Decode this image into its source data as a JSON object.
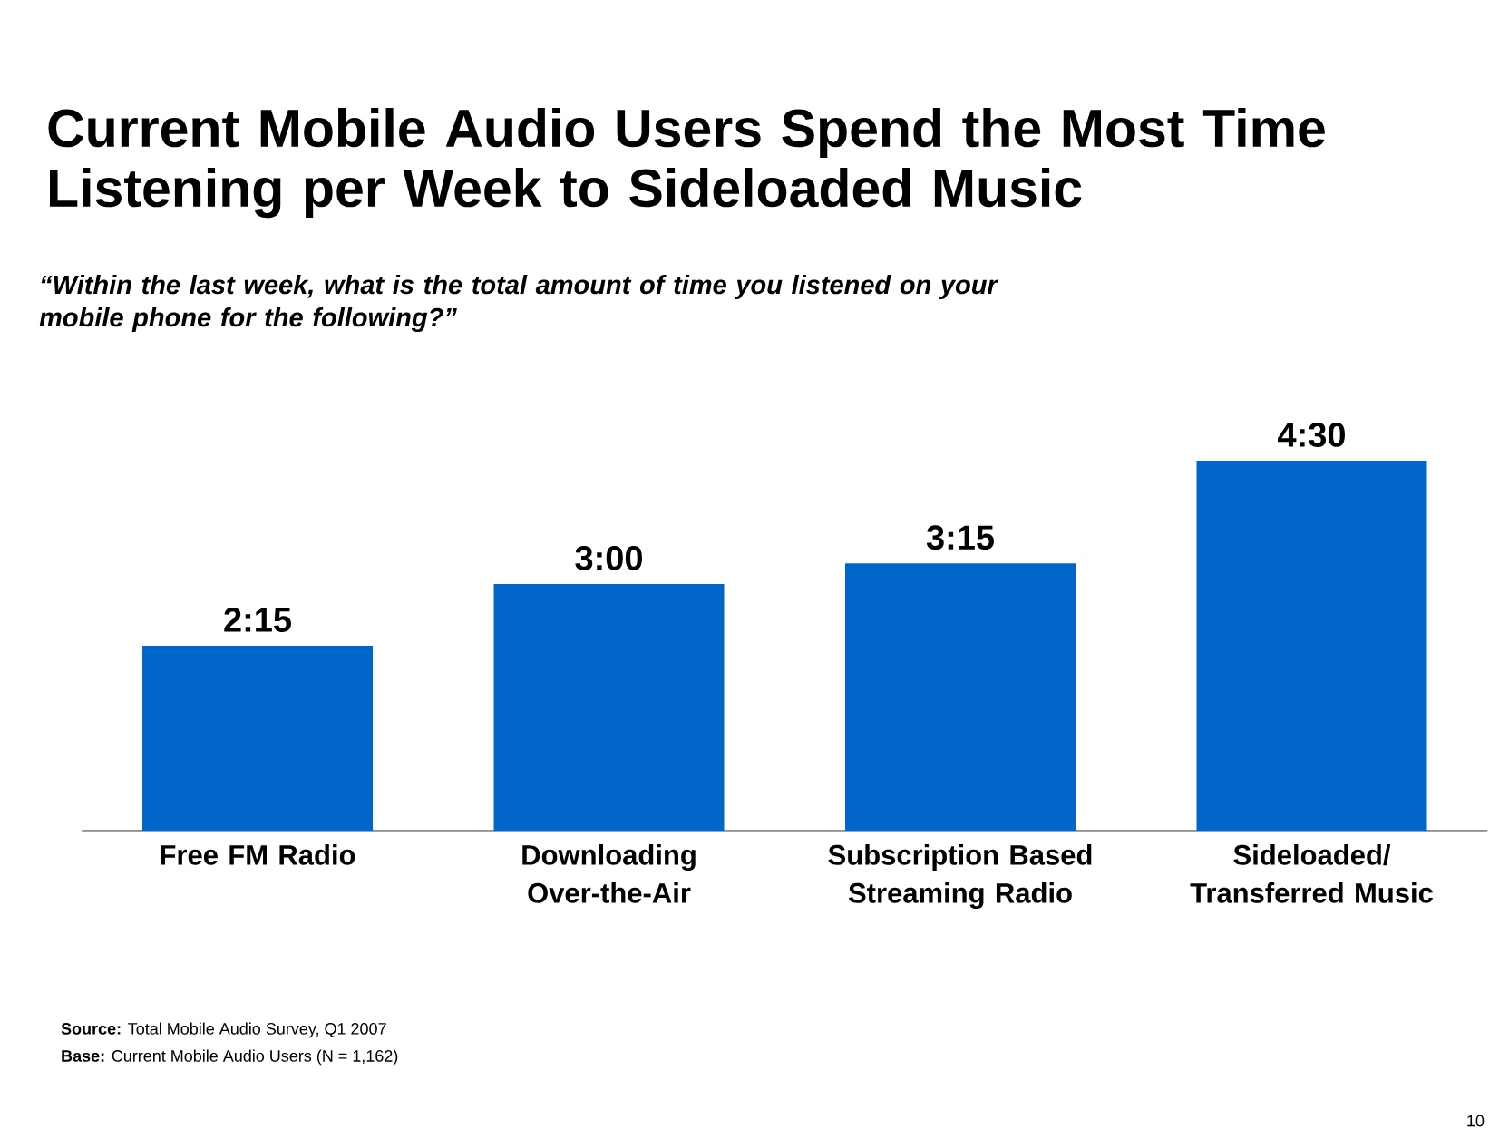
{
  "chart_data": {
    "type": "bar",
    "title": "Current Mobile Audio Users Spend the Most Time Listening per Week to Sideloaded Music",
    "subtitle": "“Within the last week, what is the total amount of time you listened on your mobile phone for the following?”",
    "categories": [
      "Free FM Radio",
      "Downloading Over-the-Air",
      "Subscription Based Streaming Radio",
      "Sideloaded/ Transferred Music"
    ],
    "values": [
      2.25,
      3,
      3.25,
      4.5
    ],
    "value_labels": [
      "2:15",
      "3:00",
      "3:15",
      "4:30"
    ],
    "color": "#0066cc",
    "annotations": [
      "**Source:** Total Mobile Audio Survey, Q1 2007",
      "**Base:** Current Mobile Audio Users (N = 1,162)",
      "10"
    ]
  }
}
